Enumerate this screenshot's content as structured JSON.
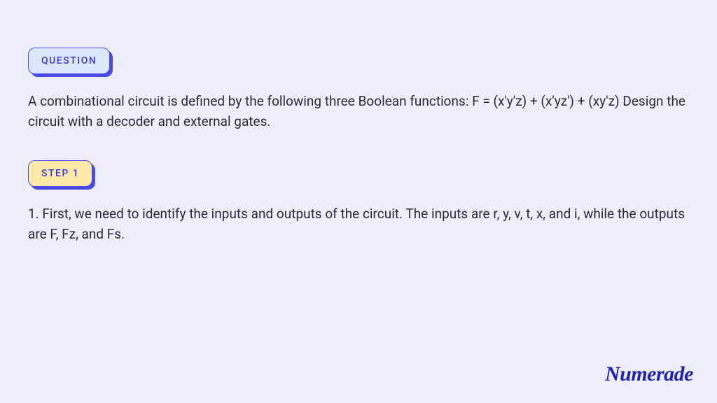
{
  "colors": {
    "page_bg": "#eeeefa",
    "badge_shadow": "#4a4ae8",
    "badge_border": "#4a4ae8",
    "question_bg": "#dbe8ff",
    "question_text": "#3838d8",
    "step_bg": "#ffe9a8",
    "step_text": "#3838d8",
    "body_text": "#2a2a3a",
    "logo_color": "#2121b0"
  },
  "typography": {
    "body_fontsize": 19,
    "badge_fontsize": 14,
    "logo_fontsize": 30
  },
  "question": {
    "badge_label": "QUESTION",
    "text": "A combinational circuit is defined by the following three Boolean functions: F = (x'y'z) + (x'yz') + (xy'z) Design the circuit with a decoder and external gates."
  },
  "step": {
    "badge_label": "STEP 1",
    "text": "1. First, we need to identify the inputs and outputs of the circuit. The inputs are r, y, v, t, x, and i, while the outputs are F, Fz, and Fs."
  },
  "logo": "Numerade"
}
